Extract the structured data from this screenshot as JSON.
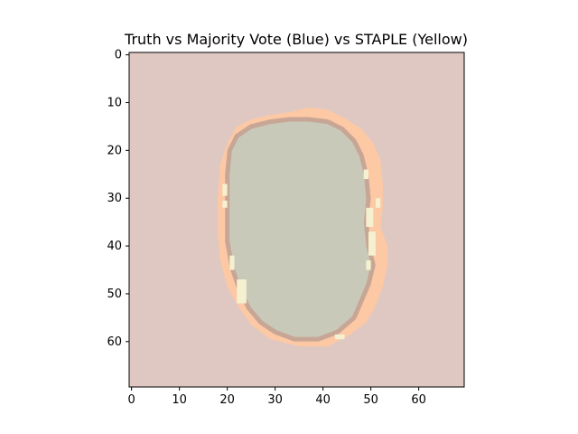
{
  "chart_data": {
    "type": "heatmap",
    "title": "Truth vs Majority Vote (Blue) vs STAPLE (Yellow)",
    "xlabel": "",
    "ylabel": "",
    "xlim": [
      -0.5,
      69.5
    ],
    "ylim": [
      69.5,
      -0.5
    ],
    "xticks": [
      0,
      10,
      20,
      30,
      40,
      50,
      60
    ],
    "yticks": [
      0,
      10,
      20,
      30,
      40,
      50,
      60
    ],
    "xtick_labels": [
      "0",
      "10",
      "20",
      "30",
      "40",
      "50",
      "60"
    ],
    "ytick_labels": [
      "0",
      "10",
      "20",
      "30",
      "40",
      "50",
      "60"
    ],
    "grid": false,
    "image_size": [
      70,
      70
    ],
    "colors": {
      "background": "#dfc8c2",
      "truth_only": "#fdc8a4",
      "truth_and_majority": "#c9c9b9",
      "majority_only": "#c8a696",
      "staple_edge": "#f5f0cf"
    },
    "regions": {
      "truth_outline": [
        [
          37,
          11
        ],
        [
          41,
          11.5
        ],
        [
          45,
          13.5
        ],
        [
          48,
          15.5
        ],
        [
          50.5,
          18.5
        ],
        [
          52,
          22
        ],
        [
          52.5,
          27
        ],
        [
          52.5,
          32
        ],
        [
          52,
          36
        ],
        [
          53.5,
          40
        ],
        [
          53.5,
          44
        ],
        [
          52.5,
          48.5
        ],
        [
          51,
          52.5
        ],
        [
          49,
          56
        ],
        [
          45,
          59
        ],
        [
          41,
          61
        ],
        [
          35,
          61
        ],
        [
          29,
          59.5
        ],
        [
          25,
          56.5
        ],
        [
          22.5,
          53
        ],
        [
          20,
          48.5
        ],
        [
          18.5,
          43
        ],
        [
          18,
          37
        ],
        [
          18,
          30
        ],
        [
          18.5,
          23
        ],
        [
          20,
          18.5
        ],
        [
          22,
          15
        ],
        [
          25,
          13.5
        ],
        [
          29.5,
          12.5
        ],
        [
          33,
          12
        ]
      ],
      "majority_outline": [
        [
          37,
          13.5
        ],
        [
          41,
          14
        ],
        [
          44,
          15.5
        ],
        [
          46.5,
          18
        ],
        [
          48,
          21
        ],
        [
          49,
          25
        ],
        [
          49.5,
          30
        ],
        [
          49,
          35
        ],
        [
          49.5,
          40
        ],
        [
          50.5,
          44
        ],
        [
          49.5,
          48
        ],
        [
          48,
          51.5
        ],
        [
          46.5,
          55
        ],
        [
          43,
          58
        ],
        [
          39,
          59.5
        ],
        [
          34,
          59.5
        ],
        [
          30,
          58
        ],
        [
          27,
          56
        ],
        [
          24.5,
          53
        ],
        [
          22.5,
          49
        ],
        [
          21,
          44.5
        ],
        [
          20,
          39
        ],
        [
          20,
          32
        ],
        [
          20,
          25
        ],
        [
          20.5,
          20
        ],
        [
          22,
          17
        ],
        [
          25,
          15
        ],
        [
          29,
          14
        ],
        [
          33,
          13.5
        ]
      ],
      "staple_edges": [
        [
          19,
          27,
          1,
          2.5
        ],
        [
          19,
          30.5,
          1,
          1.5
        ],
        [
          20.5,
          42,
          1,
          3
        ],
        [
          22,
          47,
          2,
          5
        ],
        [
          48.5,
          24,
          1,
          2
        ],
        [
          49,
          32,
          1.5,
          4
        ],
        [
          49.5,
          37,
          1.5,
          5
        ],
        [
          49,
          43,
          1,
          2
        ],
        [
          42.5,
          58.5,
          2,
          1
        ],
        [
          51,
          30,
          1,
          2
        ]
      ]
    }
  }
}
